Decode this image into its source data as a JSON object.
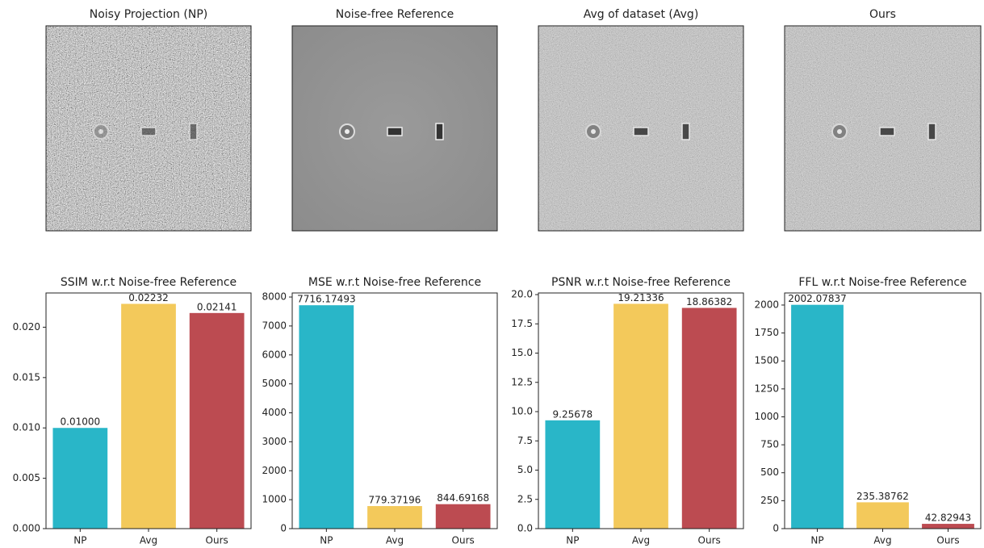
{
  "image_panels": [
    {
      "title": "Noisy Projection (NP)"
    },
    {
      "title": "Noise-free Reference"
    },
    {
      "title": "Avg of dataset (Avg)"
    },
    {
      "title": "Ours"
    }
  ],
  "chart_data": [
    {
      "type": "bar",
      "title": "SSIM w.r.t Noise-free Reference",
      "categories": [
        "NP",
        "Avg",
        "Ours"
      ],
      "values": [
        0.01,
        0.02232,
        0.02141
      ],
      "value_labels": [
        "0.01000",
        "0.02232",
        "0.02141"
      ],
      "colors": [
        "#29b6c8",
        "#f3c95b",
        "#bc4b51"
      ],
      "ylim": [
        0,
        0.0234
      ],
      "yticks": [
        {
          "value": 0,
          "label": "0.000"
        },
        {
          "value": 0.005,
          "label": "0.005"
        },
        {
          "value": 0.01,
          "label": "0.010"
        },
        {
          "value": 0.015,
          "label": "0.015"
        },
        {
          "value": 0.02,
          "label": "0.020"
        }
      ]
    },
    {
      "type": "bar",
      "title": "MSE w.r.t Noise-free Reference",
      "categories": [
        "NP",
        "Avg",
        "Ours"
      ],
      "values": [
        7716.17493,
        779.37196,
        844.69168
      ],
      "colors": [
        "#29b6c8",
        "#f3c95b",
        "#bc4b51"
      ],
      "ylim": [
        0,
        8140
      ],
      "yticks": [
        0,
        1000,
        2000,
        3000,
        4000,
        5000,
        6000,
        7000,
        8000
      ]
    },
    {
      "type": "bar",
      "title": "PSNR w.r.t Noise-free Reference",
      "categories": [
        "NP",
        "Avg",
        "Ours"
      ],
      "values": [
        9.25678,
        19.21336,
        18.86382
      ],
      "colors": [
        "#29b6c8",
        "#f3c95b",
        "#bc4b51"
      ],
      "ylim": [
        0,
        20.14
      ],
      "yticks": [
        {
          "value": 0,
          "label": "0.0"
        },
        2.5,
        {
          "value": 5,
          "label": "5.0"
        },
        7.5,
        {
          "value": 10,
          "label": "10.0"
        },
        12.5,
        {
          "value": 15,
          "label": "15.0"
        },
        17.5,
        {
          "value": 20,
          "label": "20.0"
        }
      ]
    },
    {
      "type": "bar",
      "title": "FFL w.r.t Noise-free Reference",
      "categories": [
        "NP",
        "Avg",
        "Ours"
      ],
      "values": [
        2002.07837,
        235.38762,
        42.82943
      ],
      "colors": [
        "#29b6c8",
        "#f3c95b",
        "#bc4b51"
      ],
      "ylim": [
        0,
        2108
      ],
      "yticks": [
        0,
        250,
        500,
        750,
        1000,
        1250,
        1500,
        1750,
        2000
      ]
    }
  ]
}
